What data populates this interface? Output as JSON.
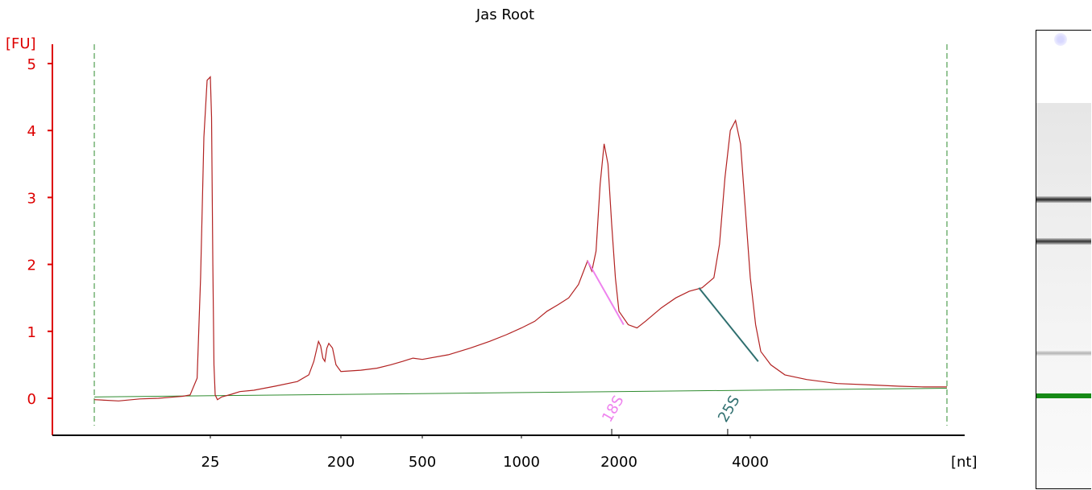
{
  "chart_data": {
    "type": "line",
    "title": "Jas Root",
    "y_unit_label": "[FU]",
    "x_unit_label": "[nt]",
    "ylim": [
      -0.55,
      5.35
    ],
    "y_ticks": [
      "0",
      "1",
      "2",
      "3",
      "4",
      "5"
    ],
    "x_ticks": [
      "25",
      "200",
      "500",
      "1000",
      "2000",
      "4000"
    ],
    "grid": false,
    "series": [
      {
        "color": "#b22222",
        "points": [
          [
            12,
            -0.02
          ],
          [
            14,
            -0.04
          ],
          [
            16,
            -0.01
          ],
          [
            18,
            0.0
          ],
          [
            20,
            0.02
          ],
          [
            21,
            0.03
          ],
          [
            22,
            0.05
          ],
          [
            23,
            0.3
          ],
          [
            23.5,
            1.8
          ],
          [
            24,
            3.9
          ],
          [
            24.5,
            4.75
          ],
          [
            25,
            4.8
          ],
          [
            25.5,
            4.2
          ],
          [
            26,
            2.0
          ],
          [
            26.5,
            0.5
          ],
          [
            27,
            0.05
          ],
          [
            28,
            -0.02
          ],
          [
            30,
            0.02
          ],
          [
            35,
            0.06
          ],
          [
            40,
            0.1
          ],
          [
            50,
            0.12
          ],
          [
            70,
            0.18
          ],
          [
            100,
            0.25
          ],
          [
            120,
            0.35
          ],
          [
            130,
            0.55
          ],
          [
            140,
            0.85
          ],
          [
            145,
            0.78
          ],
          [
            150,
            0.6
          ],
          [
            155,
            0.55
          ],
          [
            160,
            0.75
          ],
          [
            165,
            0.82
          ],
          [
            175,
            0.75
          ],
          [
            185,
            0.5
          ],
          [
            200,
            0.4
          ],
          [
            250,
            0.42
          ],
          [
            300,
            0.45
          ],
          [
            350,
            0.5
          ],
          [
            400,
            0.55
          ],
          [
            450,
            0.6
          ],
          [
            500,
            0.58
          ],
          [
            600,
            0.65
          ],
          [
            700,
            0.75
          ],
          [
            800,
            0.85
          ],
          [
            900,
            0.95
          ],
          [
            1000,
            1.05
          ],
          [
            1100,
            1.15
          ],
          [
            1200,
            1.3
          ],
          [
            1300,
            1.4
          ],
          [
            1400,
            1.5
          ],
          [
            1500,
            1.7
          ],
          [
            1600,
            2.05
          ],
          [
            1650,
            1.9
          ],
          [
            1700,
            2.2
          ],
          [
            1750,
            3.2
          ],
          [
            1800,
            3.8
          ],
          [
            1850,
            3.5
          ],
          [
            1900,
            2.6
          ],
          [
            1950,
            1.8
          ],
          [
            2000,
            1.3
          ],
          [
            2100,
            1.1
          ],
          [
            2200,
            1.05
          ],
          [
            2300,
            1.15
          ],
          [
            2500,
            1.35
          ],
          [
            2700,
            1.5
          ],
          [
            2900,
            1.6
          ],
          [
            3100,
            1.65
          ],
          [
            3300,
            1.8
          ],
          [
            3400,
            2.3
          ],
          [
            3500,
            3.3
          ],
          [
            3600,
            4.0
          ],
          [
            3700,
            4.15
          ],
          [
            3800,
            3.8
          ],
          [
            3900,
            2.8
          ],
          [
            4000,
            1.8
          ],
          [
            4100,
            1.1
          ],
          [
            4200,
            0.7
          ],
          [
            4400,
            0.5
          ],
          [
            4700,
            0.35
          ],
          [
            5200,
            0.28
          ],
          [
            6000,
            0.22
          ],
          [
            7000,
            0.2
          ],
          [
            8000,
            0.18
          ],
          [
            9000,
            0.17
          ],
          [
            10000,
            0.17
          ]
        ]
      }
    ],
    "baseline": {
      "color": "#2e8b2e",
      "points": [
        [
          12,
          0.02
        ],
        [
          10000,
          0.15
        ]
      ]
    },
    "peak_lines": [
      {
        "label": "18S",
        "color": "#ee82ee",
        "from": [
          1600,
          2.05
        ],
        "to": [
          2050,
          1.1
        ]
      },
      {
        "label": "25S",
        "color": "#2f6f6f",
        "from": [
          3050,
          1.65
        ],
        "to": [
          4150,
          0.55
        ]
      }
    ],
    "peak_markers": [
      {
        "label": "18S",
        "color": "#ee82ee",
        "x": 1900
      },
      {
        "label": "25S",
        "color": "#2f6f6f",
        "x": 3550
      }
    ],
    "region_lines": {
      "color": "#2e8b2e",
      "x": [
        12,
        10000
      ]
    }
  },
  "gel": {
    "bands": [
      {
        "position": 0.25,
        "intensity": 0.85,
        "thickness": 8
      },
      {
        "position": 0.36,
        "intensity": 0.8,
        "thickness": 8
      },
      {
        "position": 0.65,
        "intensity": 0.3,
        "thickness": 6
      },
      {
        "position": 0.76,
        "color": "#168a16",
        "thickness": 6
      }
    ]
  }
}
